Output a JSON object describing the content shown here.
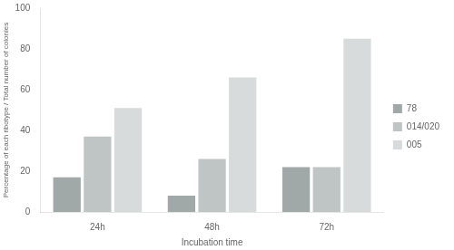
{
  "chart_data": {
    "type": "bar",
    "xlabel": "Incubation time",
    "ylabel": "Percentage of each ribotype / Total number of colonies",
    "categories": [
      "24h",
      "48h",
      "72h"
    ],
    "series": [
      {
        "name": "78",
        "color": "#a0a8a8",
        "values": [
          17,
          8,
          22
        ]
      },
      {
        "name": "014/020",
        "color": "#bfc4c4",
        "values": [
          37,
          26,
          22
        ]
      },
      {
        "name": "005",
        "color": "#d8dbdb",
        "values": [
          51,
          66,
          85
        ]
      }
    ],
    "ylim": [
      0,
      100
    ],
    "yticks": [
      0,
      20,
      40,
      60,
      80,
      100
    ],
    "grid": false,
    "legend": "right"
  }
}
